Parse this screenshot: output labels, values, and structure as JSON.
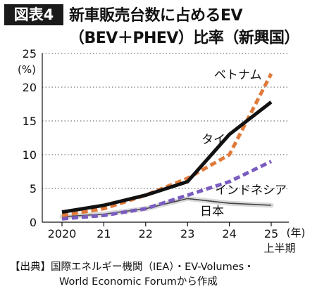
{
  "header": {
    "badge": "図表4",
    "title_line1": "新車販売台数に占めるEV",
    "title_line2": "（BEV＋PHEV）比率（新興国）"
  },
  "source": {
    "line1": "【出典】国際エネルギー機関（IEA）・EV-Volumes・",
    "line2": "World Economic Forumから作成"
  },
  "chart_data": {
    "type": "line",
    "title": "新車販売台数に占めるEV（BEV＋PHEV）比率（新興国）",
    "ylabel": "(%)",
    "x_unit_label": "(年)",
    "categories": [
      "2020",
      "21",
      "22",
      "23",
      "24",
      "25"
    ],
    "x_sub_label": "上半期",
    "ylim": [
      0,
      25
    ],
    "yticks": [
      0,
      5,
      10,
      15,
      20,
      25
    ],
    "grid": "horizontal-dotted",
    "series": [
      {
        "name": "ベトナム",
        "color": "#e07a3a",
        "style": "dashed",
        "values": [
          1.0,
          2.0,
          4.0,
          6.5,
          10.0,
          22.0
        ]
      },
      {
        "name": "タイ",
        "color": "#111111",
        "style": "solid",
        "values": [
          1.5,
          2.5,
          4.0,
          6.0,
          13.0,
          17.8
        ]
      },
      {
        "name": "インドネシア",
        "color": "#7a5cc0",
        "style": "dashed",
        "values": [
          0.5,
          1.0,
          2.0,
          4.0,
          6.0,
          9.0
        ]
      },
      {
        "name": "日本",
        "color": "#9a9a9a",
        "style": "solid",
        "values": [
          0.8,
          1.2,
          2.0,
          3.5,
          2.8,
          2.5
        ]
      }
    ]
  }
}
